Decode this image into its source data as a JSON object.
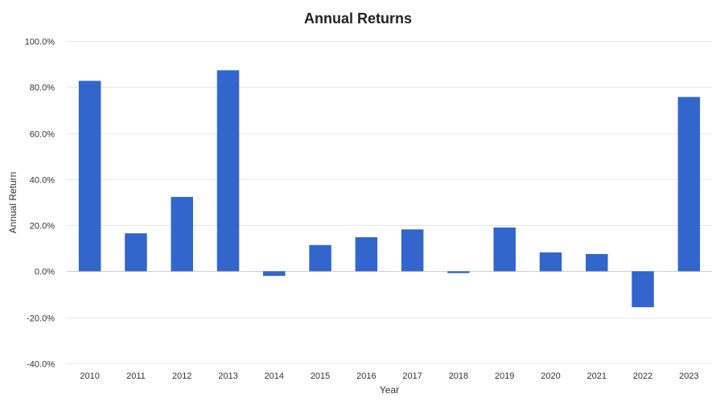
{
  "chart_data": {
    "type": "bar",
    "title": "Annual Returns",
    "xlabel": "Year",
    "ylabel": "Annual Return",
    "categories": [
      "2010",
      "2011",
      "2012",
      "2013",
      "2014",
      "2015",
      "2016",
      "2017",
      "2018",
      "2019",
      "2020",
      "2021",
      "2022",
      "2023"
    ],
    "values": [
      82.7,
      16.5,
      32.3,
      87.3,
      -2.0,
      11.4,
      14.8,
      18.2,
      -0.8,
      19.0,
      8.2,
      7.5,
      -15.6,
      75.7
    ],
    "ylim": [
      -40,
      100
    ],
    "yticks": [
      -40,
      -20,
      0,
      20,
      40,
      60,
      80,
      100
    ],
    "ytick_labels": [
      "-40.0%",
      "-20.0%",
      "0.0%",
      "20.0%",
      "40.0%",
      "60.0%",
      "80.0%",
      "100.0%"
    ],
    "grid": true,
    "bar_color": "#3366cc"
  }
}
